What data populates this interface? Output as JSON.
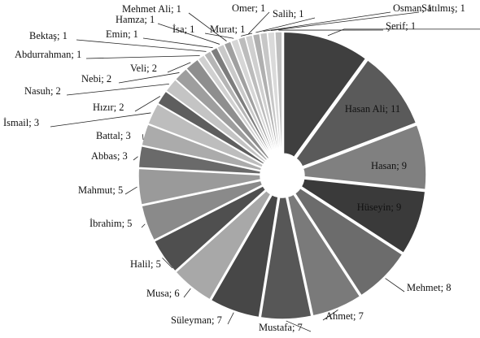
{
  "chart_data": {
    "type": "pie",
    "values": [
      12,
      11,
      9,
      9,
      8,
      7,
      7,
      7,
      6,
      5,
      5,
      5,
      3,
      3,
      3,
      2,
      2,
      2,
      2,
      1,
      1,
      1,
      1,
      1,
      1,
      1,
      1,
      1,
      1,
      1,
      1
    ],
    "value_labels": [
      null,
      "Hasan Ali; 11",
      "Hasan; 9",
      "Hüseyin; 9",
      "Mehmet; 8",
      "Ahmet; 7",
      "Mustafa; 7",
      "Süleyman; 7",
      "Musa; 6",
      "Halil; 5",
      "İbrahim; 5",
      "Mahmut; 5",
      "Abbas; 3",
      "Battal; 3",
      "İsmail; 3",
      "Hızır; 2",
      "Nasuh; 2",
      "Nebi; 2",
      "Veli; 2",
      "Abdurrahman; 1",
      "Bektaş; 1",
      "Emin; 1",
      "Hamza; 1",
      "Mehmet Ali; 1",
      "İsa; 1",
      "Murat; 1",
      "Omer; 1",
      "Salih; 1",
      "Osman; 1",
      "Satılmış; 1",
      "Şerif; 1"
    ],
    "colors": [
      "#3f3f3f",
      "#5a5a5a",
      "#808080",
      "#3a3a3a",
      "#6c6c6c",
      "#7a7a7a",
      "#575757",
      "#474747",
      "#a8a8a8",
      "#4f4f4f",
      "#8a8a8a",
      "#9a9a9a",
      "#6a6a6a",
      "#ababab",
      "#bdbdbd",
      "#5e5e5e",
      "#c4c4c4",
      "#9e9e9e",
      "#8e8e8e",
      "#d0d0d0",
      "#b5b5b5",
      "#7d7d7d",
      "#c9c9c9",
      "#a0a0a0",
      "#d6d6d6",
      "#bcbcbc",
      "#cfcfcf",
      "#b0b0b0",
      "#c7c7c7",
      "#dadada",
      "#bfbfbf"
    ]
  }
}
